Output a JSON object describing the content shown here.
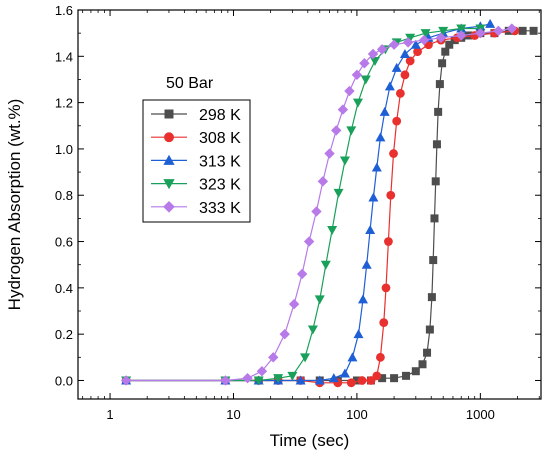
{
  "chart_data": {
    "type": "scatter",
    "title": "",
    "annotation": "50 Bar",
    "xlabel": "Time (sec)",
    "ylabel": "Hydrogen Absorption (wt.%)",
    "xscale": "log",
    "xlim": [
      0.55,
      3100
    ],
    "ylim": [
      -0.08,
      1.6
    ],
    "xticks": [
      1,
      10,
      100,
      1000
    ],
    "xtick_labels": [
      "1",
      "10",
      "100",
      "1000"
    ],
    "yticks": [
      0.0,
      0.2,
      0.4,
      0.6,
      0.8,
      1.0,
      1.2,
      1.4,
      1.6
    ],
    "ytick_labels": [
      "0.0",
      "0.2",
      "0.4",
      "0.6",
      "0.8",
      "1.0",
      "1.2",
      "1.4",
      "1.6"
    ],
    "grid": false,
    "legend_position": "upper-left",
    "series": [
      {
        "name": "298 K",
        "color": "#4d4d4d",
        "marker": "square",
        "x": [
          1.35,
          8.6,
          16,
          23,
          35,
          50,
          70,
          100,
          130,
          160,
          200,
          250,
          300,
          340,
          370,
          390,
          405,
          415,
          425,
          435,
          445,
          455,
          470,
          490,
          520,
          560,
          620,
          700,
          800,
          1000,
          1300,
          1700,
          2200,
          2700
        ],
        "y": [
          0.0,
          0.0,
          0.0,
          0.0,
          0.0,
          0.0,
          0.0,
          0.0,
          0.0,
          0.01,
          0.01,
          0.02,
          0.04,
          0.07,
          0.12,
          0.22,
          0.36,
          0.52,
          0.7,
          0.86,
          1.02,
          1.16,
          1.28,
          1.37,
          1.42,
          1.45,
          1.47,
          1.48,
          1.49,
          1.5,
          1.5,
          1.51,
          1.51,
          1.51
        ]
      },
      {
        "name": "308 K",
        "color": "#e8312f",
        "marker": "circle",
        "x": [
          1.35,
          8.6,
          16,
          23,
          35,
          50,
          70,
          90,
          110,
          130,
          145,
          155,
          165,
          172,
          180,
          188,
          198,
          210,
          225,
          245,
          270,
          310,
          380,
          480,
          650,
          900,
          1300,
          1900
        ],
        "y": [
          0.0,
          0.0,
          0.0,
          0.0,
          0.0,
          -0.01,
          -0.01,
          -0.01,
          0.0,
          0.0,
          0.02,
          0.1,
          0.25,
          0.4,
          0.6,
          0.8,
          0.98,
          1.12,
          1.24,
          1.32,
          1.38,
          1.42,
          1.45,
          1.47,
          1.48,
          1.49,
          1.5,
          1.51
        ]
      },
      {
        "name": "313 K",
        "color": "#1f5fd6",
        "marker": "triangle-up",
        "x": [
          1.35,
          8.6,
          16,
          23,
          35,
          50,
          65,
          80,
          92,
          103,
          112,
          120,
          128,
          136,
          145,
          155,
          168,
          185,
          210,
          245,
          300,
          380,
          500,
          700,
          1000,
          1200
        ],
        "y": [
          0.0,
          0.0,
          0.0,
          0.0,
          0.0,
          0.0,
          0.01,
          0.03,
          0.1,
          0.2,
          0.35,
          0.5,
          0.65,
          0.79,
          0.92,
          1.05,
          1.16,
          1.27,
          1.35,
          1.41,
          1.45,
          1.48,
          1.5,
          1.52,
          1.53,
          1.54
        ]
      },
      {
        "name": "323 K",
        "color": "#19a05a",
        "marker": "triangle-down",
        "x": [
          1.35,
          8.6,
          16,
          23,
          30,
          38,
          44,
          50,
          56,
          63,
          71,
          80,
          90,
          102,
          118,
          140,
          170,
          210,
          270,
          360,
          500,
          700,
          1000
        ],
        "y": [
          0.0,
          0.0,
          0.0,
          0.01,
          0.02,
          0.1,
          0.22,
          0.35,
          0.5,
          0.65,
          0.81,
          0.95,
          1.08,
          1.2,
          1.3,
          1.38,
          1.43,
          1.46,
          1.48,
          1.5,
          1.51,
          1.52,
          1.52
        ]
      },
      {
        "name": "333 K",
        "color": "#b77ae8",
        "marker": "diamond",
        "x": [
          1.35,
          8.6,
          13,
          17,
          21,
          26,
          31,
          36,
          41,
          47,
          53,
          60,
          68,
          77,
          87,
          100,
          115,
          135,
          160,
          200,
          260,
          350,
          480,
          700,
          1000,
          1400,
          1800
        ],
        "y": [
          0.0,
          0.0,
          0.01,
          0.04,
          0.1,
          0.2,
          0.33,
          0.46,
          0.6,
          0.73,
          0.86,
          0.98,
          1.08,
          1.17,
          1.25,
          1.32,
          1.37,
          1.41,
          1.43,
          1.45,
          1.46,
          1.47,
          1.48,
          1.49,
          1.5,
          1.51,
          1.52
        ]
      }
    ]
  }
}
